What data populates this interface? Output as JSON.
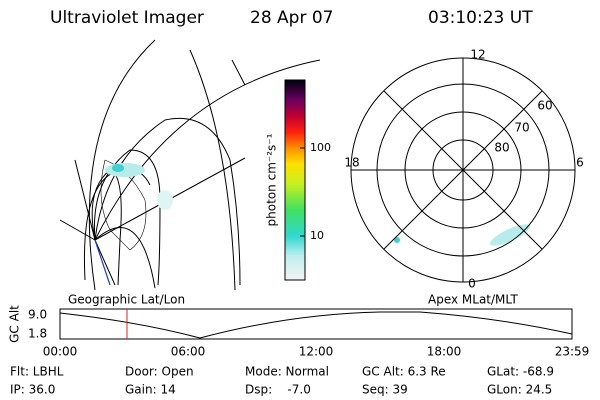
{
  "header": {
    "instrument": "Ultraviolet Imager",
    "date": "28 Apr 07",
    "time": "03:10:23 UT"
  },
  "colorbar": {
    "label": "photon cm⁻²s⁻¹",
    "ticks": [
      "100",
      "10"
    ]
  },
  "polar": {
    "mlt_labels": [
      "12",
      "18",
      "6",
      "0"
    ],
    "lat_labels": [
      "60",
      "70",
      "80"
    ]
  },
  "panels": {
    "left_label": "Geographic Lat/Lon",
    "right_label": "Apex MLat/MLT"
  },
  "altitude_plot": {
    "ylabel": "GC Alt",
    "yticks": [
      "9.0",
      "1.8"
    ],
    "xticks": [
      "00:00",
      "06:00",
      "12:00",
      "18:00",
      "23:59"
    ]
  },
  "status": {
    "rows": [
      [
        "Flt: LBHL",
        "Door: Open",
        "Mode: Normal",
        "GC Alt: 6.3 Re",
        "GLat: -68.9"
      ],
      [
        "IP: 36.0",
        "Gain: 14",
        "Dsp:    -7.0",
        "Seq: 39",
        "GLon: 24.5"
      ]
    ]
  }
}
